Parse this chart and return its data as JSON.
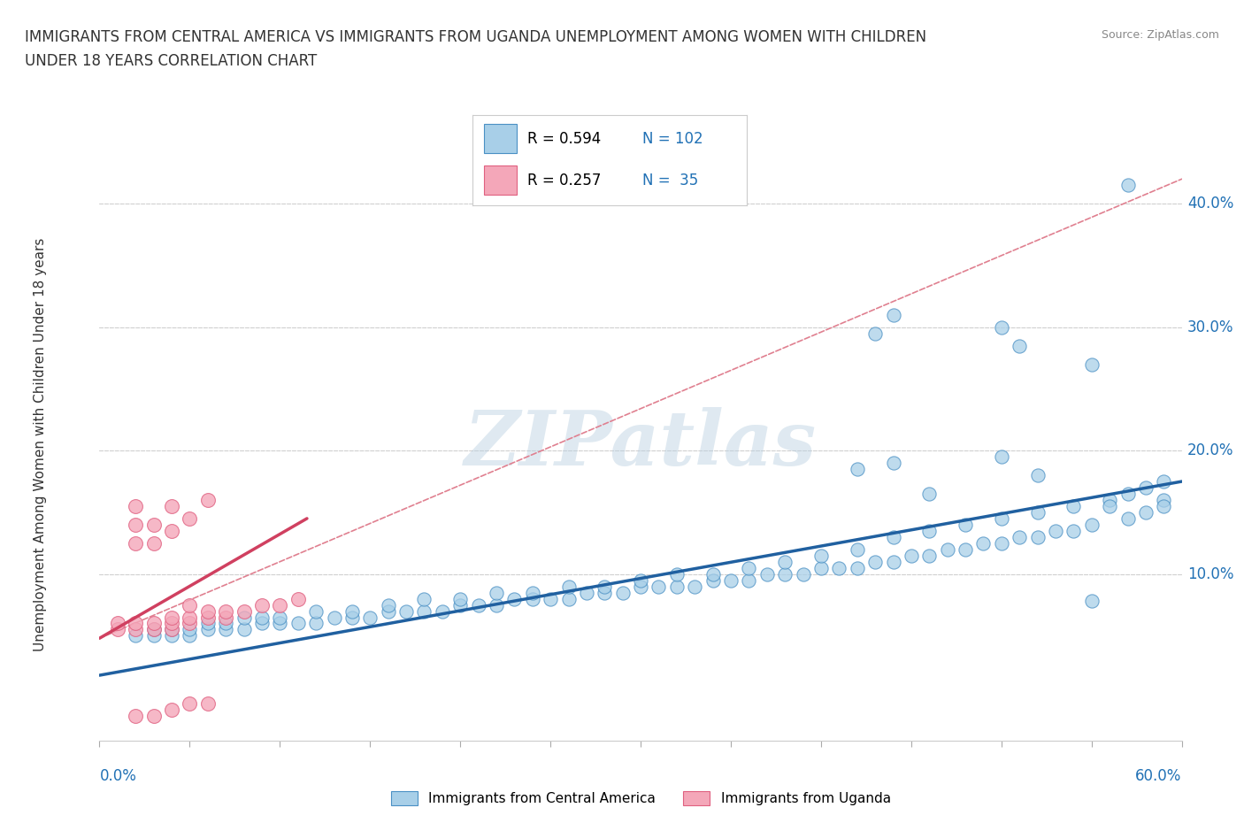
{
  "title_line1": "IMMIGRANTS FROM CENTRAL AMERICA VS IMMIGRANTS FROM UGANDA UNEMPLOYMENT AMONG WOMEN WITH CHILDREN",
  "title_line2": "UNDER 18 YEARS CORRELATION CHART",
  "source": "Source: ZipAtlas.com",
  "ylabel": "Unemployment Among Women with Children Under 18 years",
  "xlim": [
    0.0,
    0.6
  ],
  "ylim": [
    -0.035,
    0.445
  ],
  "color_blue_fill": "#a8cfe8",
  "color_pink_fill": "#f4a7b9",
  "color_blue_edge": "#4a90c4",
  "color_pink_edge": "#e06080",
  "color_blue_text": "#2171b5",
  "color_line_blue": "#2060a0",
  "color_line_pink": "#d04060",
  "color_line_dashed": "#e08090",
  "color_grid": "#d0d0d0",
  "legend_label_blue": "Immigrants from Central America",
  "legend_label_pink": "Immigrants from Uganda",
  "watermark": "ZIPatlas",
  "background_color": "#ffffff",
  "blue_trend": [
    0.0,
    0.018,
    0.6,
    0.175
  ],
  "pink_solid_trend": [
    0.0,
    0.048,
    0.115,
    0.145
  ],
  "pink_dashed_trend": [
    0.0,
    0.048,
    0.6,
    0.42
  ],
  "scatter_blue": [
    [
      0.02,
      0.05
    ],
    [
      0.03,
      0.05
    ],
    [
      0.04,
      0.05
    ],
    [
      0.05,
      0.05
    ],
    [
      0.06,
      0.055
    ],
    [
      0.07,
      0.055
    ],
    [
      0.08,
      0.055
    ],
    [
      0.09,
      0.06
    ],
    [
      0.1,
      0.06
    ],
    [
      0.11,
      0.06
    ],
    [
      0.12,
      0.06
    ],
    [
      0.13,
      0.065
    ],
    [
      0.14,
      0.065
    ],
    [
      0.15,
      0.065
    ],
    [
      0.16,
      0.07
    ],
    [
      0.17,
      0.07
    ],
    [
      0.18,
      0.07
    ],
    [
      0.19,
      0.07
    ],
    [
      0.2,
      0.075
    ],
    [
      0.21,
      0.075
    ],
    [
      0.22,
      0.075
    ],
    [
      0.23,
      0.08
    ],
    [
      0.24,
      0.08
    ],
    [
      0.25,
      0.08
    ],
    [
      0.26,
      0.08
    ],
    [
      0.27,
      0.085
    ],
    [
      0.28,
      0.085
    ],
    [
      0.29,
      0.085
    ],
    [
      0.3,
      0.09
    ],
    [
      0.31,
      0.09
    ],
    [
      0.32,
      0.09
    ],
    [
      0.33,
      0.09
    ],
    [
      0.34,
      0.095
    ],
    [
      0.35,
      0.095
    ],
    [
      0.36,
      0.095
    ],
    [
      0.37,
      0.1
    ],
    [
      0.38,
      0.1
    ],
    [
      0.39,
      0.1
    ],
    [
      0.4,
      0.105
    ],
    [
      0.41,
      0.105
    ],
    [
      0.42,
      0.105
    ],
    [
      0.43,
      0.11
    ],
    [
      0.44,
      0.11
    ],
    [
      0.45,
      0.115
    ],
    [
      0.46,
      0.115
    ],
    [
      0.47,
      0.12
    ],
    [
      0.48,
      0.12
    ],
    [
      0.49,
      0.125
    ],
    [
      0.5,
      0.125
    ],
    [
      0.51,
      0.13
    ],
    [
      0.52,
      0.13
    ],
    [
      0.53,
      0.135
    ],
    [
      0.54,
      0.135
    ],
    [
      0.55,
      0.14
    ],
    [
      0.03,
      0.055
    ],
    [
      0.04,
      0.055
    ],
    [
      0.05,
      0.055
    ],
    [
      0.06,
      0.06
    ],
    [
      0.07,
      0.06
    ],
    [
      0.08,
      0.065
    ],
    [
      0.09,
      0.065
    ],
    [
      0.1,
      0.065
    ],
    [
      0.12,
      0.07
    ],
    [
      0.14,
      0.07
    ],
    [
      0.16,
      0.075
    ],
    [
      0.18,
      0.08
    ],
    [
      0.2,
      0.08
    ],
    [
      0.22,
      0.085
    ],
    [
      0.24,
      0.085
    ],
    [
      0.26,
      0.09
    ],
    [
      0.28,
      0.09
    ],
    [
      0.3,
      0.095
    ],
    [
      0.32,
      0.1
    ],
    [
      0.34,
      0.1
    ],
    [
      0.36,
      0.105
    ],
    [
      0.38,
      0.11
    ],
    [
      0.4,
      0.115
    ],
    [
      0.42,
      0.12
    ],
    [
      0.44,
      0.13
    ],
    [
      0.46,
      0.135
    ],
    [
      0.48,
      0.14
    ],
    [
      0.5,
      0.145
    ],
    [
      0.52,
      0.15
    ],
    [
      0.54,
      0.155
    ],
    [
      0.56,
      0.16
    ],
    [
      0.57,
      0.165
    ],
    [
      0.58,
      0.17
    ],
    [
      0.59,
      0.175
    ],
    [
      0.42,
      0.185
    ],
    [
      0.44,
      0.19
    ],
    [
      0.46,
      0.165
    ],
    [
      0.5,
      0.195
    ],
    [
      0.52,
      0.18
    ],
    [
      0.55,
      0.078
    ],
    [
      0.56,
      0.155
    ],
    [
      0.57,
      0.145
    ],
    [
      0.58,
      0.15
    ],
    [
      0.59,
      0.16
    ],
    [
      0.59,
      0.155
    ],
    [
      0.43,
      0.295
    ],
    [
      0.44,
      0.31
    ],
    [
      0.5,
      0.3
    ],
    [
      0.51,
      0.285
    ],
    [
      0.55,
      0.27
    ],
    [
      0.57,
      0.415
    ]
  ],
  "scatter_pink": [
    [
      0.01,
      0.055
    ],
    [
      0.01,
      0.06
    ],
    [
      0.02,
      0.055
    ],
    [
      0.02,
      0.06
    ],
    [
      0.02,
      0.125
    ],
    [
      0.02,
      0.14
    ],
    [
      0.02,
      0.155
    ],
    [
      0.03,
      0.055
    ],
    [
      0.03,
      0.06
    ],
    [
      0.03,
      0.125
    ],
    [
      0.03,
      0.14
    ],
    [
      0.04,
      0.055
    ],
    [
      0.04,
      0.06
    ],
    [
      0.04,
      0.065
    ],
    [
      0.04,
      0.135
    ],
    [
      0.04,
      0.155
    ],
    [
      0.05,
      0.06
    ],
    [
      0.05,
      0.065
    ],
    [
      0.05,
      0.075
    ],
    [
      0.05,
      0.145
    ],
    [
      0.06,
      0.065
    ],
    [
      0.06,
      0.07
    ],
    [
      0.06,
      0.16
    ],
    [
      0.07,
      0.065
    ],
    [
      0.07,
      0.07
    ],
    [
      0.08,
      0.07
    ],
    [
      0.09,
      0.075
    ],
    [
      0.1,
      0.075
    ],
    [
      0.11,
      0.08
    ],
    [
      0.02,
      -0.015
    ],
    [
      0.03,
      -0.015
    ],
    [
      0.04,
      -0.01
    ],
    [
      0.05,
      -0.005
    ],
    [
      0.06,
      -0.005
    ]
  ]
}
